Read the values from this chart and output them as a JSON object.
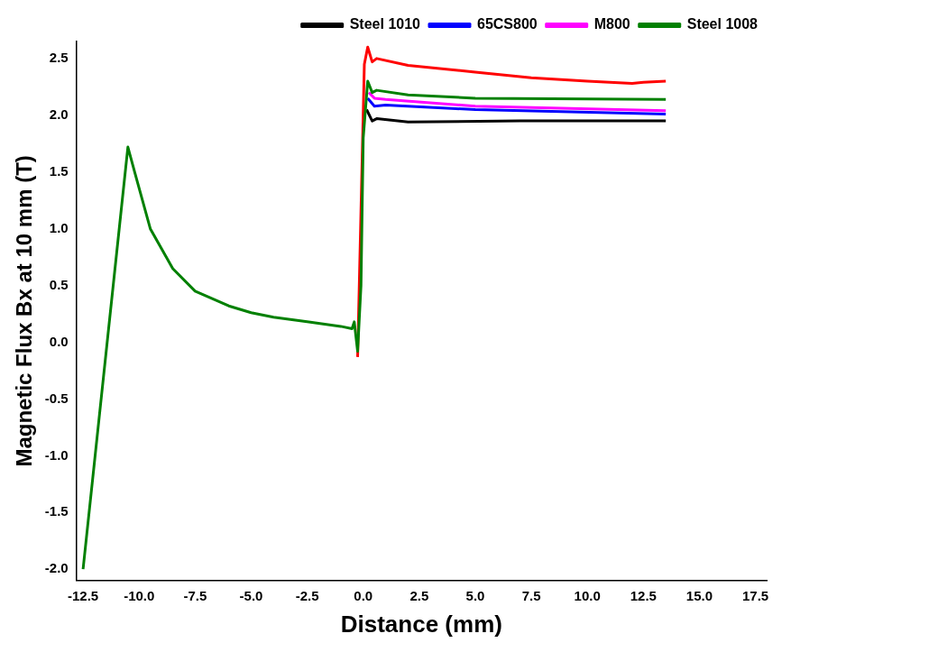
{
  "chart_data": {
    "type": "line",
    "xlabel": "Distance (mm)",
    "ylabel": "Magnetic Flux Bx at 10 mm (T)",
    "legend": "top right",
    "grid": false,
    "marker": "none",
    "line_style": "solid",
    "xlim": [
      -12.8,
      18
    ],
    "ylim": [
      -2.1,
      2.65
    ],
    "xticks": [
      {
        "value": -12.5,
        "label": "-12.5"
      },
      {
        "value": -10,
        "label": "-10.0"
      },
      {
        "value": -7.5,
        "label": "-7.5"
      },
      {
        "value": -5,
        "label": "-5.0"
      },
      {
        "value": -2.5,
        "label": "-2.5"
      },
      {
        "value": 0,
        "label": "0.0"
      },
      {
        "value": 2.5,
        "label": "2.5"
      },
      {
        "value": 5,
        "label": "5.0"
      },
      {
        "value": 7.5,
        "label": "7.5"
      },
      {
        "value": 10,
        "label": "10.0"
      },
      {
        "value": 12.5,
        "label": "12.5"
      },
      {
        "value": 15,
        "label": "15.0"
      },
      {
        "value": 17.5,
        "label": "17.5"
      }
    ],
    "yticks": [
      {
        "value": -2,
        "label": "-2.0"
      },
      {
        "value": -1.5,
        "label": "-1.5"
      },
      {
        "value": -1,
        "label": "-1.0"
      },
      {
        "value": -0.5,
        "label": "-0.5"
      },
      {
        "value": 0,
        "label": "0.0"
      },
      {
        "value": 0.5,
        "label": "0.5"
      },
      {
        "value": 1,
        "label": "1.0"
      },
      {
        "value": 1.5,
        "label": "1.5"
      },
      {
        "value": 2,
        "label": "2.0"
      },
      {
        "value": 2.5,
        "label": "2.5"
      }
    ],
    "series": [
      {
        "name": "Steel 1010",
        "color": "#000000",
        "x": [
          0.15,
          0.4,
          0.6,
          2,
          7,
          13.5
        ],
        "values": [
          2.05,
          1.95,
          1.97,
          1.94,
          1.95,
          1.95
        ]
      },
      {
        "color": "#ff0000",
        "x": [
          -0.25,
          0.05,
          0.2,
          0.4,
          0.6,
          2,
          5,
          7.5,
          10,
          12,
          12.5,
          13.5
        ],
        "values": [
          -0.13,
          2.45,
          2.6,
          2.47,
          2.5,
          2.44,
          2.38,
          2.33,
          2.3,
          2.28,
          2.29,
          2.3
        ]
      },
      {
        "name": "65CS800",
        "color": "#0000ff",
        "x": [
          0.2,
          0.5,
          1,
          5,
          13.5
        ],
        "values": [
          2.15,
          2.08,
          2.09,
          2.05,
          2.01
        ]
      },
      {
        "name": "M800",
        "color": "#ff00ff",
        "x": [
          0.25,
          0.5,
          1,
          5,
          13.5
        ],
        "values": [
          2.2,
          2.15,
          2.14,
          2.08,
          2.04
        ]
      },
      {
        "name": "Steel 1008",
        "color": "#008000",
        "x": [
          -12.5,
          -10.5,
          -10.2,
          -9.5,
          -8.5,
          -7.5,
          -6,
          -5,
          -4,
          -2.5,
          -1,
          -0.5,
          -0.4,
          -0.25,
          -0.1,
          0,
          0.2,
          0.4,
          0.6,
          2,
          5,
          13.5
        ],
        "values": [
          -2.0,
          1.72,
          1.5,
          1.0,
          0.65,
          0.45,
          0.32,
          0.26,
          0.22,
          0.18,
          0.14,
          0.12,
          0.18,
          -0.08,
          0.5,
          1.8,
          2.3,
          2.2,
          2.22,
          2.18,
          2.15,
          2.14
        ]
      }
    ]
  }
}
